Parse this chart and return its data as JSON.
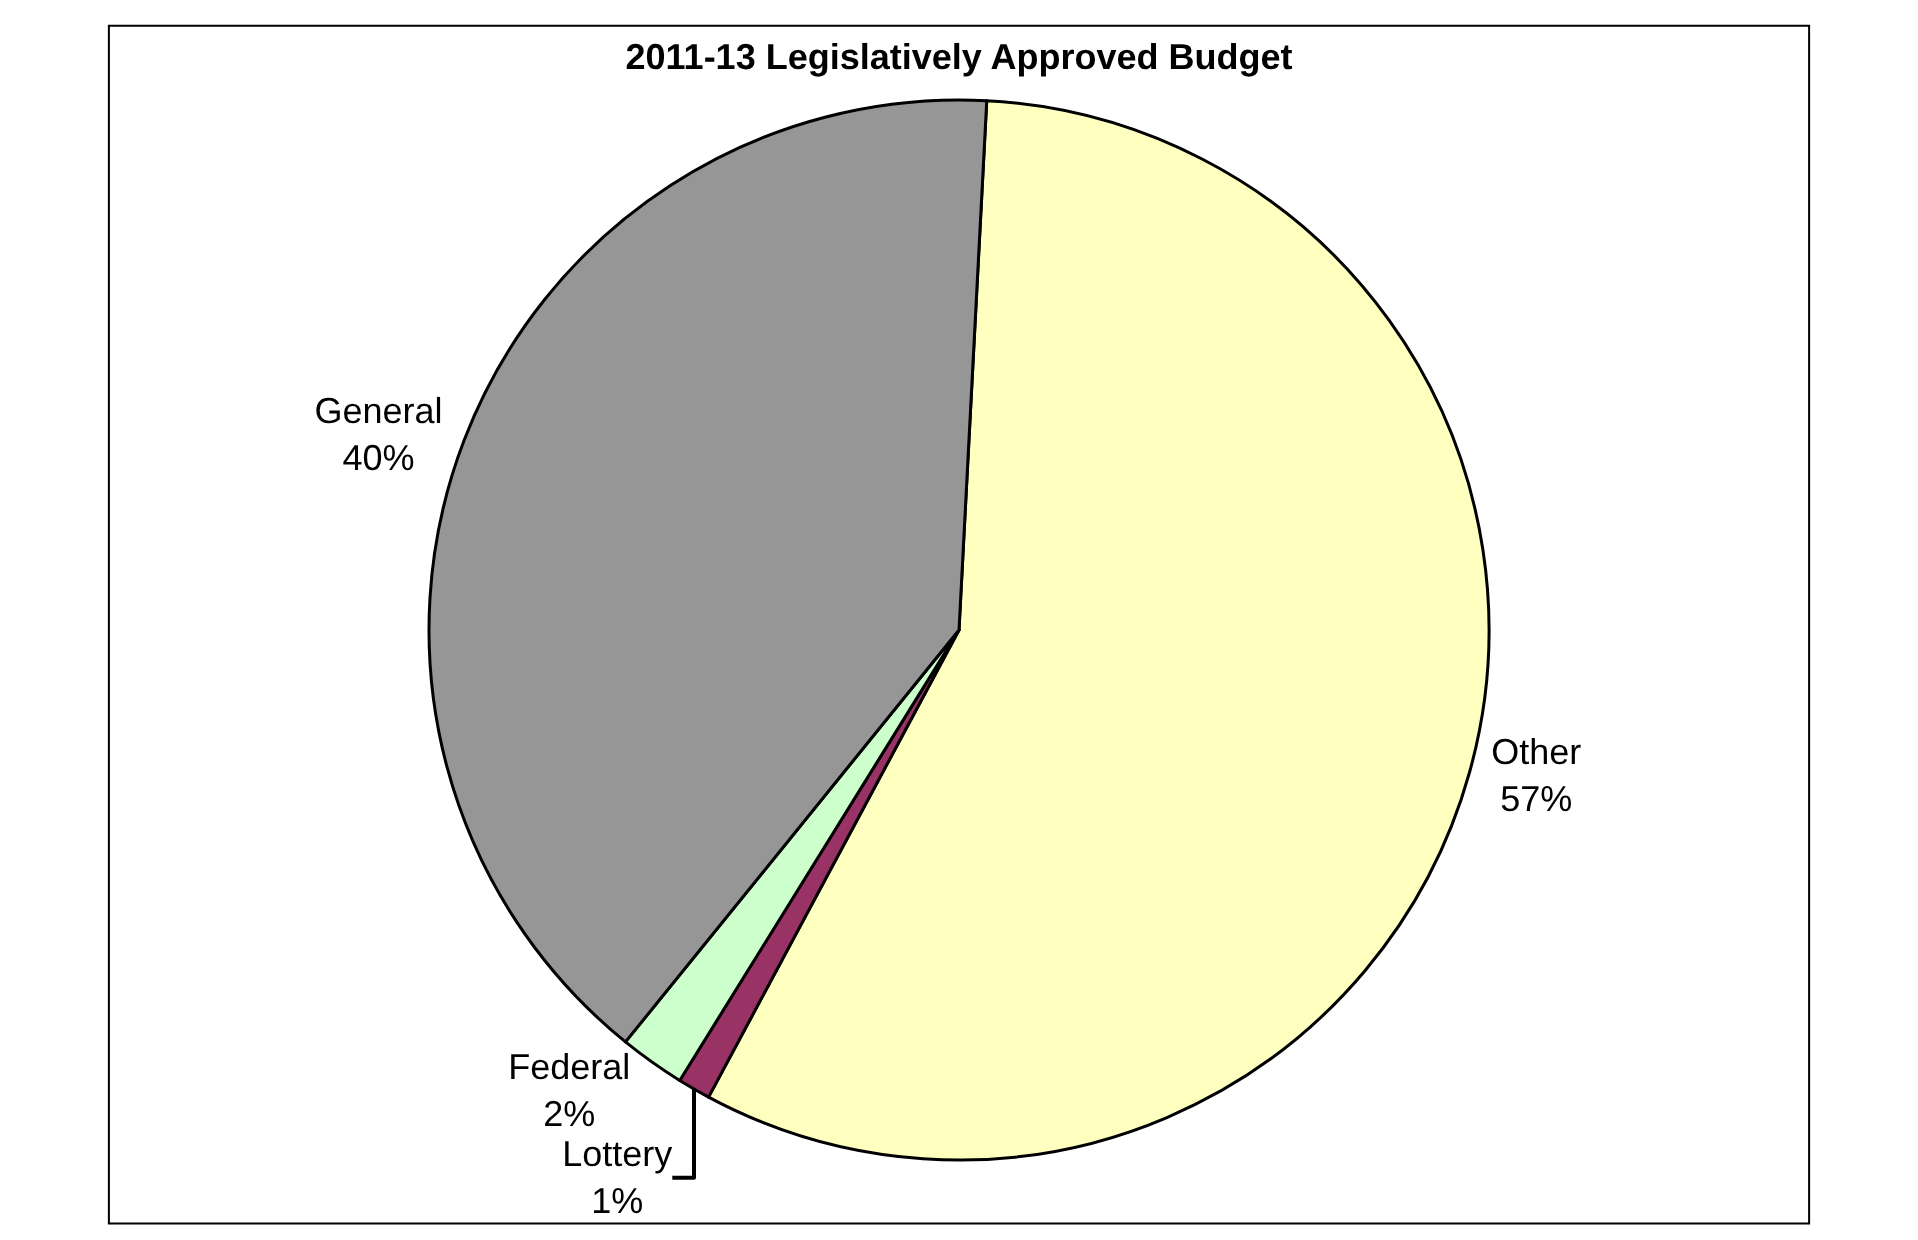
{
  "chart_data": {
    "type": "pie",
    "title": "2011-13 Legislatively Approved Budget",
    "categories": [
      "Other",
      "Lottery",
      "Federal",
      "General"
    ],
    "values": [
      57,
      1,
      2,
      40
    ],
    "value_labels": [
      "57%",
      "1%",
      "2%",
      "40%"
    ],
    "colors": [
      "#ffffc0",
      "#993366",
      "#ccffcc",
      "#969696"
    ],
    "legend": false
  }
}
